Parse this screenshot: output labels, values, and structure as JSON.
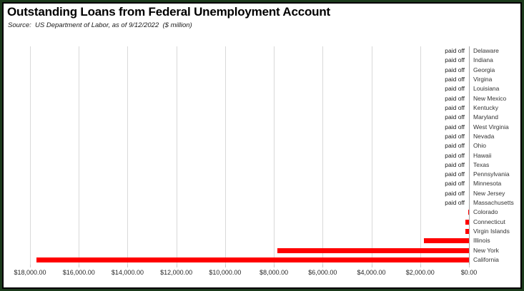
{
  "header": {
    "title": "Outstanding Loans from Federal Unemployment Account",
    "source": "Source:  US Department of Labor, as of 9/12/2022  ($ million)"
  },
  "colors": {
    "bar": "#ff0000",
    "gridline": "#d9d9d9",
    "axis_line": "#a6a6a6",
    "frame_outer": "#1b3a1b",
    "frame_inner": "#000000"
  },
  "chart_data": {
    "type": "bar",
    "orientation": "horizontal",
    "value_axis_reversed": true,
    "unit": "$ million",
    "xlim": [
      18000,
      0
    ],
    "grid": true,
    "paid_off_text": "paid off",
    "x_tick_labels": [
      "$18,000.00",
      "$16,000.00",
      "$14,000.00",
      "$12,000.00",
      "$10,000.00",
      "$8,000.00",
      "$6,000.00",
      "$4,000.00",
      "$2,000.00",
      "$0.00"
    ],
    "x_tick_values": [
      18000,
      16000,
      14000,
      12000,
      10000,
      8000,
      6000,
      4000,
      2000,
      0
    ],
    "rows": [
      {
        "state": "Delaware",
        "status": "paid off",
        "value": null
      },
      {
        "state": "Indiana",
        "status": "paid off",
        "value": null
      },
      {
        "state": "Georgia",
        "status": "paid off",
        "value": null
      },
      {
        "state": "Virgina",
        "status": "paid off",
        "value": null
      },
      {
        "state": "Louisiana",
        "status": "paid off",
        "value": null
      },
      {
        "state": "New Mexico",
        "status": "paid off",
        "value": null
      },
      {
        "state": "Kentucky",
        "status": "paid off",
        "value": null
      },
      {
        "state": "Maryland",
        "status": "paid off",
        "value": null
      },
      {
        "state": "West Virginia",
        "status": "paid off",
        "value": null
      },
      {
        "state": "Nevada",
        "status": "paid off",
        "value": null
      },
      {
        "state": "Ohio",
        "status": "paid off",
        "value": null
      },
      {
        "state": "Hawaii",
        "status": "paid off",
        "value": null
      },
      {
        "state": "Texas",
        "status": "paid off",
        "value": null
      },
      {
        "state": "Pennsylvania",
        "status": "paid off",
        "value": null
      },
      {
        "state": "Minnesota",
        "status": "paid off",
        "value": null
      },
      {
        "state": "New Jersey",
        "status": "paid off",
        "value": null
      },
      {
        "state": "Massachusetts",
        "status": "paid off",
        "value": null
      },
      {
        "state": "Colorado",
        "status": "outstanding",
        "value": 30
      },
      {
        "state": "Connecticut",
        "status": "outstanding",
        "value": 150
      },
      {
        "state": "Virgin Islands",
        "status": "outstanding",
        "value": 140
      },
      {
        "state": "Illinois",
        "status": "outstanding",
        "value": 1840
      },
      {
        "state": "New York",
        "status": "outstanding",
        "value": 7860
      },
      {
        "state": "California",
        "status": "outstanding",
        "value": 17750
      }
    ]
  }
}
